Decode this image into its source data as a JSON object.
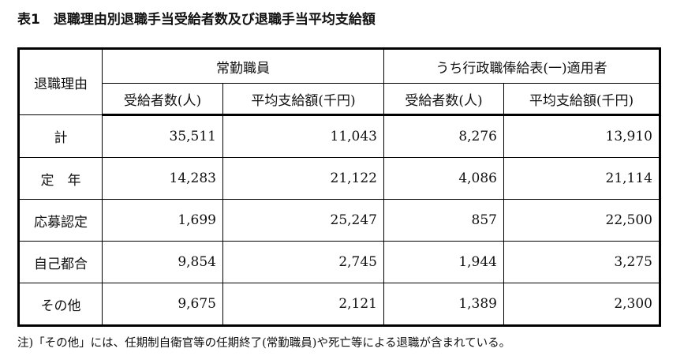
{
  "title": "表1　退職理由別退職手当受給者数及び退職手当平均支給額",
  "table": {
    "row_header": "退職理由",
    "groups": [
      "常勤職員",
      "うち行政職俸給表(一)適用者"
    ],
    "sub_headers": [
      "受給者数(人)",
      "平均支給額(千円)",
      "受給者数(人)",
      "平均支給額(千円)"
    ],
    "rows": [
      {
        "label": "計",
        "values": [
          "35,511",
          "11,043",
          "8,276",
          "13,910"
        ]
      },
      {
        "label": "定　年",
        "values": [
          "14,283",
          "21,122",
          "4,086",
          "21,114"
        ]
      },
      {
        "label": "応募認定",
        "values": [
          "1,699",
          "25,247",
          "857",
          "22,500"
        ]
      },
      {
        "label": "自己都合",
        "values": [
          "9,854",
          "2,745",
          "1,944",
          "3,275"
        ]
      },
      {
        "label": "その他",
        "values": [
          "9,675",
          "2,121",
          "1,389",
          "2,300"
        ]
      }
    ]
  },
  "note": "注)「その他」には、任期制自衛官等の任期終了(常勤職員)や死亡等による退職が含まれている。"
}
